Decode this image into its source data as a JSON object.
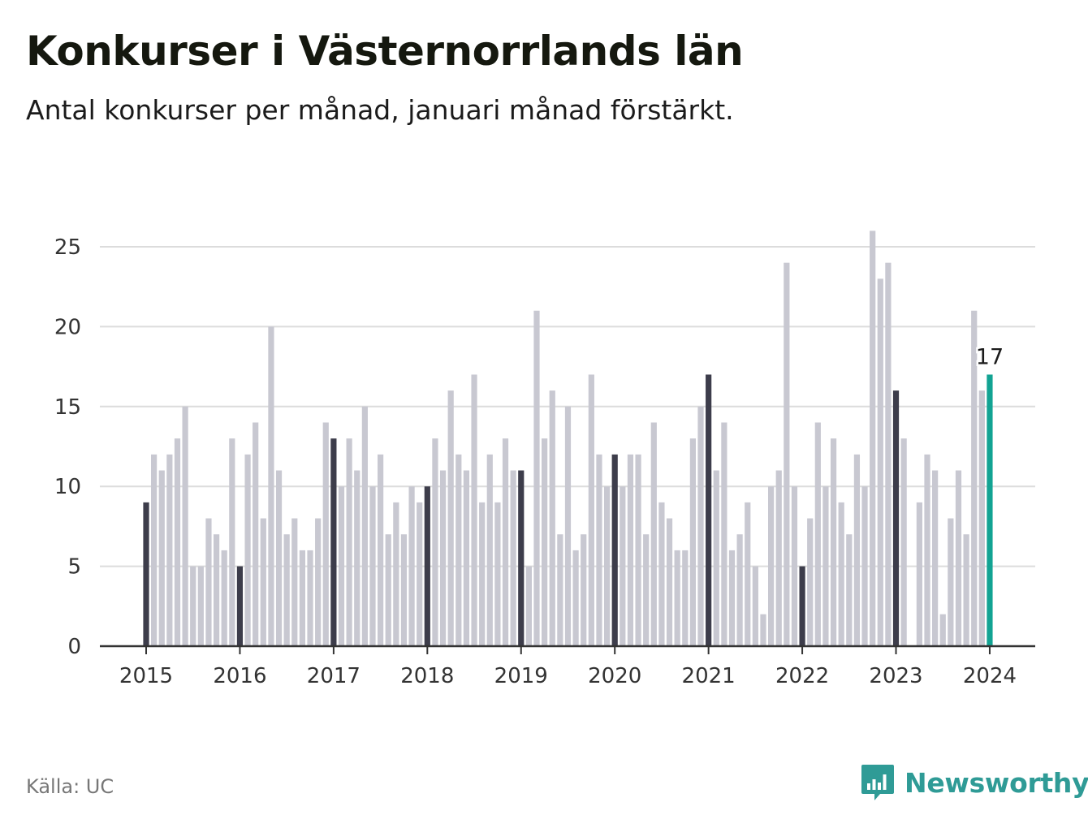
{
  "title": "Konkurser i Västernorrlands län",
  "subtitle": "Antal konkurser per månad, januari månad förstärkt.",
  "source": "Källa: UC",
  "brand": "Newsworthy",
  "colors": {
    "january": "#3d3d4b",
    "month": "#c8c8d1",
    "latest": "#12a393",
    "grid": "#dcdcdc",
    "axis": "#333333",
    "brand": "#2f9b96"
  },
  "chart_data": {
    "type": "bar",
    "ylim": [
      0,
      27
    ],
    "yticks": [
      "0",
      "5",
      "10",
      "15",
      "20",
      "25"
    ],
    "xticks": [
      "2015",
      "2016",
      "2017",
      "2018",
      "2019",
      "2020",
      "2021",
      "2022",
      "2023",
      "2024"
    ],
    "annotation": "17",
    "series": [
      {
        "values": [
          9,
          12,
          11,
          12,
          13,
          15,
          5,
          5,
          8,
          7,
          6,
          13,
          5,
          12,
          14,
          8,
          20,
          11,
          7,
          8,
          6,
          6,
          8,
          14,
          13,
          10,
          13,
          11,
          15,
          10,
          12,
          7,
          9,
          7,
          10,
          9,
          10,
          13,
          11,
          16,
          12,
          11,
          17,
          9,
          12,
          9,
          13,
          11,
          11,
          5,
          21,
          13,
          16,
          7,
          15,
          6,
          7,
          17,
          12,
          10,
          12,
          10,
          12,
          12,
          7,
          14,
          9,
          8,
          6,
          6,
          13,
          15,
          17,
          11,
          14,
          6,
          7,
          9,
          5,
          2,
          10,
          11,
          24,
          10,
          5,
          8,
          14,
          10,
          13,
          9,
          7,
          12,
          10,
          26,
          23,
          24,
          16,
          13,
          0,
          9,
          12,
          11,
          2,
          8,
          11,
          7,
          21,
          16,
          17
        ]
      }
    ]
  }
}
